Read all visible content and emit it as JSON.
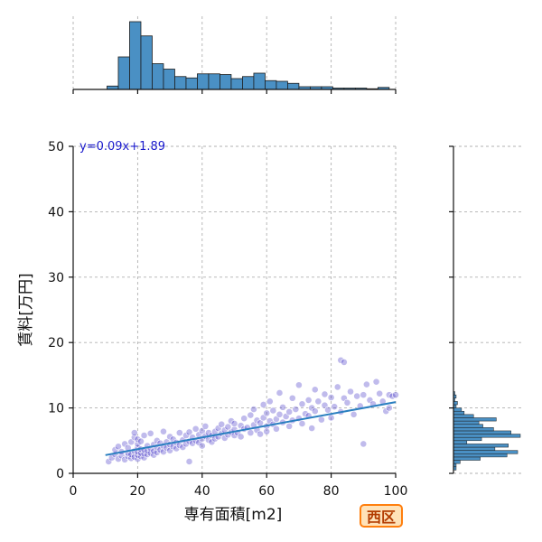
{
  "badge": {
    "label": "西区",
    "color": "#ff7f0e"
  },
  "chart_data": {
    "type": "scatter",
    "xlabel": "専有面積[m2]",
    "ylabel": "賃料[万円]",
    "xlim": [
      0,
      100
    ],
    "ylim": [
      0,
      50
    ],
    "xticks": [
      0,
      20,
      40,
      60,
      80,
      100
    ],
    "yticks": [
      0,
      10,
      20,
      30,
      40,
      50
    ],
    "grid": true,
    "point_color": "#3a2bc4",
    "hist_color": "#4a90c4",
    "line_color": "#2a7fc0",
    "regression": {
      "label": "y=0.09x+1.89",
      "slope": 0.09,
      "intercept": 1.89,
      "x_range": [
        10,
        100
      ]
    },
    "scatter_points": [
      [
        11,
        1.8
      ],
      [
        12,
        2.4
      ],
      [
        13,
        2.9
      ],
      [
        13,
        3.6
      ],
      [
        14,
        2.2
      ],
      [
        14,
        4.1
      ],
      [
        15,
        2.7
      ],
      [
        15,
        3.3
      ],
      [
        16,
        2.1
      ],
      [
        16,
        4.5
      ],
      [
        17,
        2.6
      ],
      [
        17,
        3.1
      ],
      [
        17,
        3.9
      ],
      [
        18,
        2.3
      ],
      [
        18,
        2.9
      ],
      [
        18,
        4.8
      ],
      [
        19,
        2.5
      ],
      [
        19,
        3.4
      ],
      [
        19,
        5.5
      ],
      [
        19,
        6.2
      ],
      [
        20,
        2.2
      ],
      [
        20,
        2.8
      ],
      [
        20,
        3.3
      ],
      [
        20,
        3.9
      ],
      [
        20,
        4.5
      ],
      [
        20,
        5.2
      ],
      [
        21,
        2.6
      ],
      [
        21,
        3.1
      ],
      [
        21,
        3.7
      ],
      [
        21,
        4.9
      ],
      [
        22,
        2.4
      ],
      [
        22,
        3.0
      ],
      [
        22,
        3.6
      ],
      [
        22,
        5.8
      ],
      [
        23,
        2.9
      ],
      [
        23,
        3.5
      ],
      [
        23,
        4.2
      ],
      [
        24,
        3.1
      ],
      [
        24,
        3.8
      ],
      [
        24,
        6.1
      ],
      [
        25,
        2.8
      ],
      [
        25,
        3.4
      ],
      [
        25,
        4.4
      ],
      [
        26,
        3.2
      ],
      [
        26,
        4.0
      ],
      [
        26,
        5.0
      ],
      [
        27,
        3.6
      ],
      [
        27,
        4.6
      ],
      [
        28,
        3.3
      ],
      [
        28,
        4.2
      ],
      [
        28,
        6.4
      ],
      [
        29,
        3.9
      ],
      [
        29,
        4.8
      ],
      [
        30,
        3.5
      ],
      [
        30,
        4.4
      ],
      [
        30,
        5.6
      ],
      [
        31,
        4.1
      ],
      [
        31,
        5.2
      ],
      [
        32,
        3.8
      ],
      [
        32,
        4.7
      ],
      [
        33,
        4.3
      ],
      [
        33,
        6.2
      ],
      [
        34,
        4.0
      ],
      [
        34,
        5.1
      ],
      [
        35,
        4.5
      ],
      [
        35,
        5.8
      ],
      [
        36,
        1.8
      ],
      [
        36,
        4.9
      ],
      [
        36,
        6.3
      ],
      [
        37,
        4.6
      ],
      [
        37,
        5.5
      ],
      [
        38,
        5.0
      ],
      [
        38,
        6.8
      ],
      [
        39,
        4.7
      ],
      [
        39,
        5.9
      ],
      [
        40,
        5.3
      ],
      [
        40,
        6.5
      ],
      [
        40,
        4.2
      ],
      [
        41,
        5.7
      ],
      [
        41,
        7.2
      ],
      [
        42,
        5.1
      ],
      [
        42,
        6.2
      ],
      [
        43,
        5.8
      ],
      [
        43,
        4.8
      ],
      [
        44,
        6.4
      ],
      [
        44,
        5.3
      ],
      [
        45,
        6.9
      ],
      [
        45,
        5.6
      ],
      [
        46,
        6.1
      ],
      [
        46,
        7.5
      ],
      [
        47,
        5.4
      ],
      [
        47,
        6.6
      ],
      [
        48,
        7.1
      ],
      [
        48,
        5.9
      ],
      [
        49,
        6.3
      ],
      [
        49,
        8.0
      ],
      [
        50,
        6.7
      ],
      [
        50,
        5.8
      ],
      [
        50,
        7.6
      ],
      [
        51,
        6.2
      ],
      [
        52,
        7.3
      ],
      [
        52,
        5.6
      ],
      [
        53,
        6.8
      ],
      [
        53,
        8.4
      ],
      [
        54,
        7.0
      ],
      [
        55,
        6.2
      ],
      [
        55,
        8.9
      ],
      [
        56,
        7.4
      ],
      [
        56,
        9.8
      ],
      [
        57,
        6.6
      ],
      [
        57,
        8.1
      ],
      [
        58,
        7.7
      ],
      [
        58,
        6.0
      ],
      [
        59,
        8.5
      ],
      [
        59,
        10.5
      ],
      [
        60,
        7.2
      ],
      [
        60,
        6.4
      ],
      [
        60,
        9.2
      ],
      [
        61,
        8.0
      ],
      [
        61,
        11.0
      ],
      [
        62,
        7.5
      ],
      [
        62,
        9.6
      ],
      [
        63,
        8.3
      ],
      [
        63,
        6.8
      ],
      [
        64,
        9.0
      ],
      [
        64,
        12.3
      ],
      [
        65,
        7.8
      ],
      [
        65,
        10.1
      ],
      [
        66,
        8.7
      ],
      [
        67,
        9.4
      ],
      [
        67,
        7.2
      ],
      [
        68,
        8.1
      ],
      [
        68,
        11.5
      ],
      [
        69,
        9.8
      ],
      [
        70,
        8.4
      ],
      [
        70,
        13.5
      ],
      [
        71,
        10.6
      ],
      [
        71,
        7.6
      ],
      [
        72,
        9.1
      ],
      [
        73,
        11.2
      ],
      [
        73,
        8.8
      ],
      [
        74,
        10.0
      ],
      [
        74,
        6.9
      ],
      [
        75,
        12.8
      ],
      [
        75,
        9.5
      ],
      [
        76,
        11.0
      ],
      [
        77,
        8.2
      ],
      [
        78,
        10.4
      ],
      [
        78,
        12.1
      ],
      [
        79,
        9.7
      ],
      [
        80,
        11.6
      ],
      [
        80,
        8.5
      ],
      [
        81,
        10.2
      ],
      [
        82,
        13.2
      ],
      [
        83,
        9.4
      ],
      [
        83,
        17.3
      ],
      [
        84,
        11.5
      ],
      [
        84,
        17.0
      ],
      [
        85,
        10.8
      ],
      [
        86,
        12.5
      ],
      [
        87,
        9.0
      ],
      [
        88,
        11.8
      ],
      [
        89,
        10.3
      ],
      [
        90,
        12.0
      ],
      [
        90,
        4.5
      ],
      [
        91,
        13.6
      ],
      [
        92,
        11.2
      ],
      [
        93,
        10.6
      ],
      [
        94,
        14.0
      ],
      [
        95,
        12.2
      ],
      [
        96,
        11.0
      ],
      [
        97,
        9.5
      ],
      [
        98,
        12.0
      ],
      [
        98,
        10.0
      ],
      [
        99,
        11.8
      ],
      [
        100,
        12.0
      ]
    ],
    "top_hist": {
      "bin_edges": [
        0,
        3.5,
        7,
        10.5,
        14,
        17.5,
        21,
        24.5,
        28,
        31.5,
        35,
        38.5,
        42,
        45.5,
        49,
        52.5,
        56,
        59.5,
        63,
        66.5,
        70,
        73.5,
        77,
        80.5,
        84,
        87.5,
        91,
        94.5,
        98,
        100
      ],
      "counts": [
        0,
        0,
        0,
        5,
        48,
        100,
        79,
        38,
        30,
        19,
        17,
        23,
        23,
        22,
        16,
        19,
        24,
        13,
        12,
        9,
        4,
        4,
        4,
        2,
        2,
        2,
        1,
        3,
        0
      ]
    },
    "right_hist": {
      "bin_edges": [
        0,
        0.5,
        1,
        1.5,
        2,
        2.5,
        3,
        3.5,
        4,
        4.5,
        5,
        5.5,
        6,
        6.5,
        7,
        7.5,
        8,
        8.5,
        9,
        9.5,
        10,
        10.5,
        11,
        11.5,
        12,
        12.5,
        13,
        13.5,
        14,
        15,
        16,
        17,
        17.5,
        50
      ],
      "counts": [
        0,
        2,
        2,
        5,
        20,
        40,
        48,
        31,
        41,
        10,
        21,
        50,
        43,
        30,
        22,
        19,
        32,
        15,
        8,
        6,
        2,
        3,
        1,
        2,
        1,
        0,
        0,
        0,
        0,
        0,
        0,
        0,
        0
      ]
    }
  }
}
